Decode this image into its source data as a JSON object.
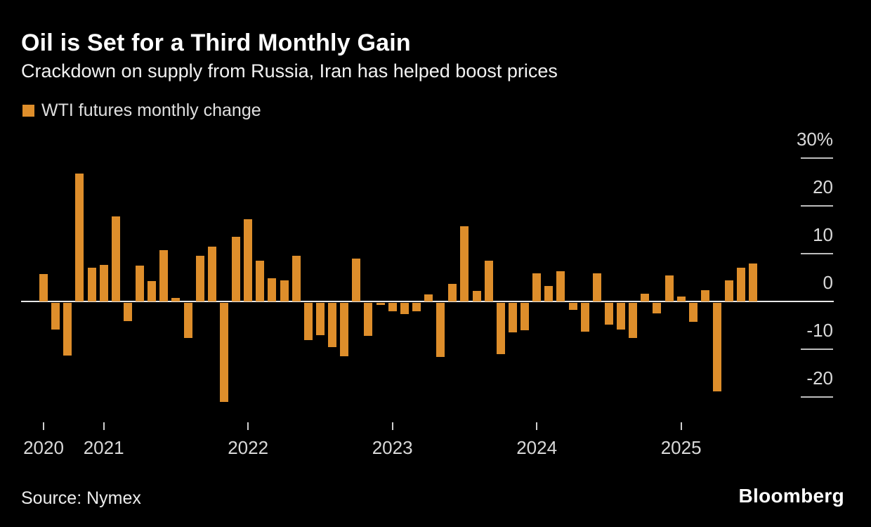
{
  "page": {
    "background": "#000000"
  },
  "header": {
    "title": "Oil is Set for a Third Monthly Gain",
    "subtitle": "Crackdown on supply from Russia, Iran has helped boost prices"
  },
  "legend": {
    "label": "WTI futures monthly change",
    "swatch_color": "#de8e2b"
  },
  "chart_data": {
    "type": "bar",
    "title": "Oil is Set for a Third Monthly Gain",
    "subtitle": "Crackdown on supply from Russia, Iran has helped boost prices",
    "unit": "%",
    "grid": "zero-line-only",
    "legend_position": "top-left",
    "bar_color": "#de8e2b",
    "series": [
      {
        "name": "WTI futures monthly change",
        "color": "#de8e2b",
        "x": [
          "2020-08",
          "2020-09",
          "2020-10",
          "2020-11",
          "2020-12",
          "2021-01",
          "2021-02",
          "2021-03",
          "2021-04",
          "2021-05",
          "2021-06",
          "2021-07",
          "2021-08",
          "2021-09",
          "2021-10",
          "2021-11",
          "2021-12",
          "2022-01",
          "2022-02",
          "2022-03",
          "2022-04",
          "2022-05",
          "2022-06",
          "2022-07",
          "2022-08",
          "2022-09",
          "2022-10",
          "2022-11",
          "2022-12",
          "2023-01",
          "2023-02",
          "2023-03",
          "2023-04",
          "2023-05",
          "2023-06",
          "2023-07",
          "2023-08",
          "2023-09",
          "2023-10",
          "2023-11",
          "2023-12",
          "2024-01",
          "2024-02",
          "2024-03",
          "2024-04",
          "2024-05",
          "2024-06",
          "2024-07",
          "2024-08",
          "2024-09",
          "2024-10",
          "2024-11",
          "2024-12",
          "2025-01",
          "2025-02",
          "2025-03",
          "2025-04",
          "2025-05",
          "2025-06",
          "2025-07"
        ],
        "values": [
          5.8,
          -5.6,
          -11.0,
          26.7,
          7.0,
          7.6,
          17.8,
          -3.8,
          7.5,
          4.3,
          10.8,
          0.7,
          -7.4,
          9.5,
          11.4,
          -20.8,
          13.6,
          17.2,
          8.6,
          4.8,
          4.4,
          9.5,
          -7.8,
          -6.8,
          -9.2,
          -11.2,
          8.9,
          -6.9,
          -0.4,
          -1.7,
          -2.3,
          -1.8,
          1.5,
          -11.3,
          3.7,
          15.8,
          2.2,
          8.6,
          -10.8,
          -6.2,
          -5.7,
          5.9,
          3.2,
          6.3,
          -1.5,
          -6.0,
          5.9,
          -4.5,
          -5.6,
          -7.3,
          1.6,
          -2.2,
          5.5,
          1.1,
          -3.9,
          2.4,
          -18.6,
          4.4,
          7.1,
          7.9
        ]
      }
    ],
    "x_axis": {
      "ticks": [
        {
          "label": "2020",
          "month": "2020-08"
        },
        {
          "label": "2021",
          "month": "2021-01"
        },
        {
          "label": "2022",
          "month": "2022-01"
        },
        {
          "label": "2023",
          "month": "2023-01"
        },
        {
          "label": "2024",
          "month": "2024-01"
        },
        {
          "label": "2025",
          "month": "2025-01"
        }
      ]
    },
    "y_axis": {
      "ticks": [
        {
          "label": "30%",
          "value": 30
        },
        {
          "label": "20",
          "value": 20
        },
        {
          "label": "10",
          "value": 10
        },
        {
          "label": "0",
          "value": 0
        },
        {
          "label": "-10",
          "value": -10
        },
        {
          "label": "-20",
          "value": -20
        }
      ],
      "range": [
        -25,
        32
      ],
      "unit": "%"
    }
  },
  "footer": {
    "source": "Source: Nymex",
    "brand": "Bloomberg"
  }
}
